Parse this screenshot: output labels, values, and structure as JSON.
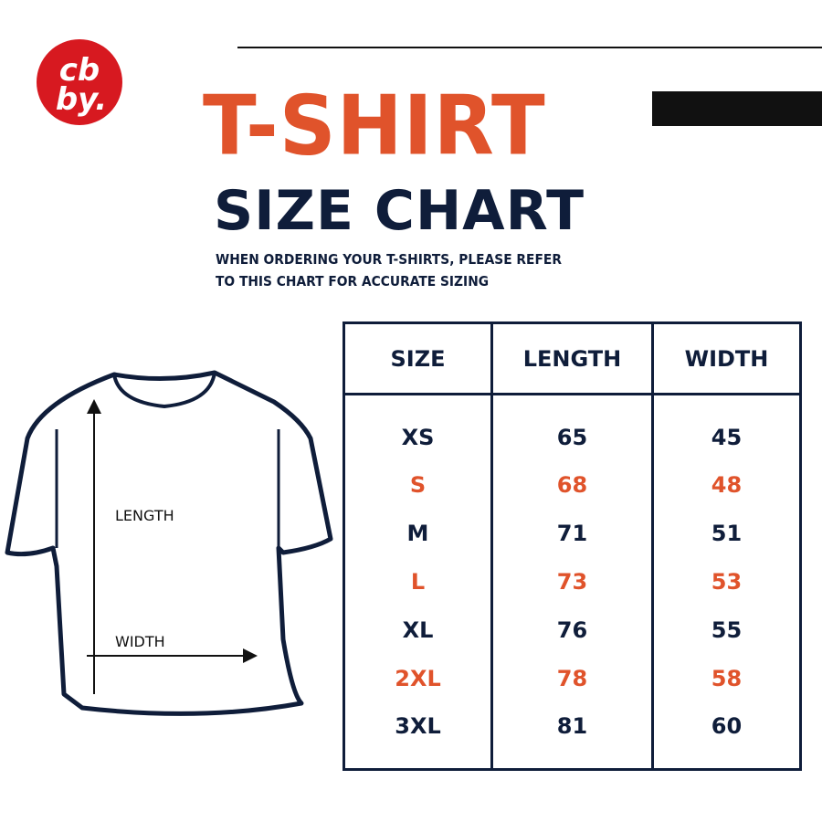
{
  "logo": {
    "text": "cb by.",
    "color": "#d71920"
  },
  "title": {
    "line1": "T-SHIRT",
    "line2": "SIZE CHART"
  },
  "subtitle": [
    "WHEN ORDERING YOUR T-SHIRTS, PLEASE REFER",
    "TO THIS CHART FOR ACCURATE SIZING"
  ],
  "diagram": {
    "length_label": "LENGTH",
    "width_label": "WIDTH"
  },
  "table": {
    "headers": [
      "SIZE",
      "LENGTH",
      "WIDTH"
    ],
    "rows": [
      {
        "size": "XS",
        "length": "65",
        "width": "45",
        "highlight": false
      },
      {
        "size": "S",
        "length": "68",
        "width": "48",
        "highlight": true
      },
      {
        "size": "M",
        "length": "71",
        "width": "51",
        "highlight": false
      },
      {
        "size": "L",
        "length": "73",
        "width": "53",
        "highlight": true
      },
      {
        "size": "XL",
        "length": "76",
        "width": "55",
        "highlight": false
      },
      {
        "size": "2XL",
        "length": "78",
        "width": "58",
        "highlight": true
      },
      {
        "size": "3XL",
        "length": "81",
        "width": "60",
        "highlight": false
      }
    ]
  },
  "colors": {
    "accent": "#e0532b",
    "navy": "#0f1d3a"
  }
}
